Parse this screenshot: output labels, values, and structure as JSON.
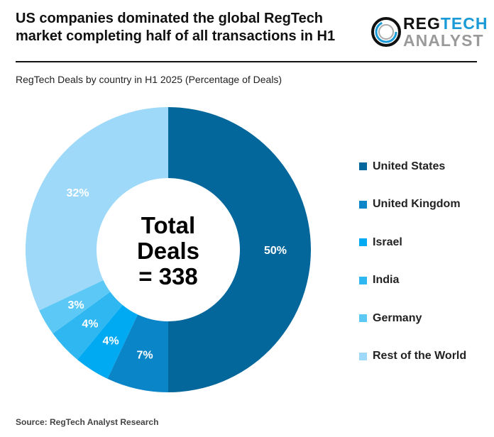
{
  "title": "US companies dominated the global RegTech market completing half of all transactions in H1",
  "logo": {
    "line1a": "REG",
    "line1b": "TECH",
    "line2": "ANALYST"
  },
  "source": "Source: RegTech Analyst Research",
  "chart_data": {
    "type": "pie",
    "title": "RegTech Deals by country in H1 2025 (Percentage of Deals)",
    "center_label": [
      "Total",
      "Deals",
      "= 338"
    ],
    "legend_position": "right",
    "categories": [
      "United States",
      "United Kingdom",
      "Israel",
      "India",
      "Germany",
      "Rest of the World"
    ],
    "values": [
      50,
      7,
      4,
      4,
      3,
      32
    ],
    "labels": [
      "50%",
      "7%",
      "4%",
      "4%",
      "3%",
      "32%"
    ],
    "colors": [
      "#04679b",
      "#0a85c7",
      "#00aaf2",
      "#2fb7f2",
      "#5cc8f6",
      "#9ed9f9"
    ]
  }
}
